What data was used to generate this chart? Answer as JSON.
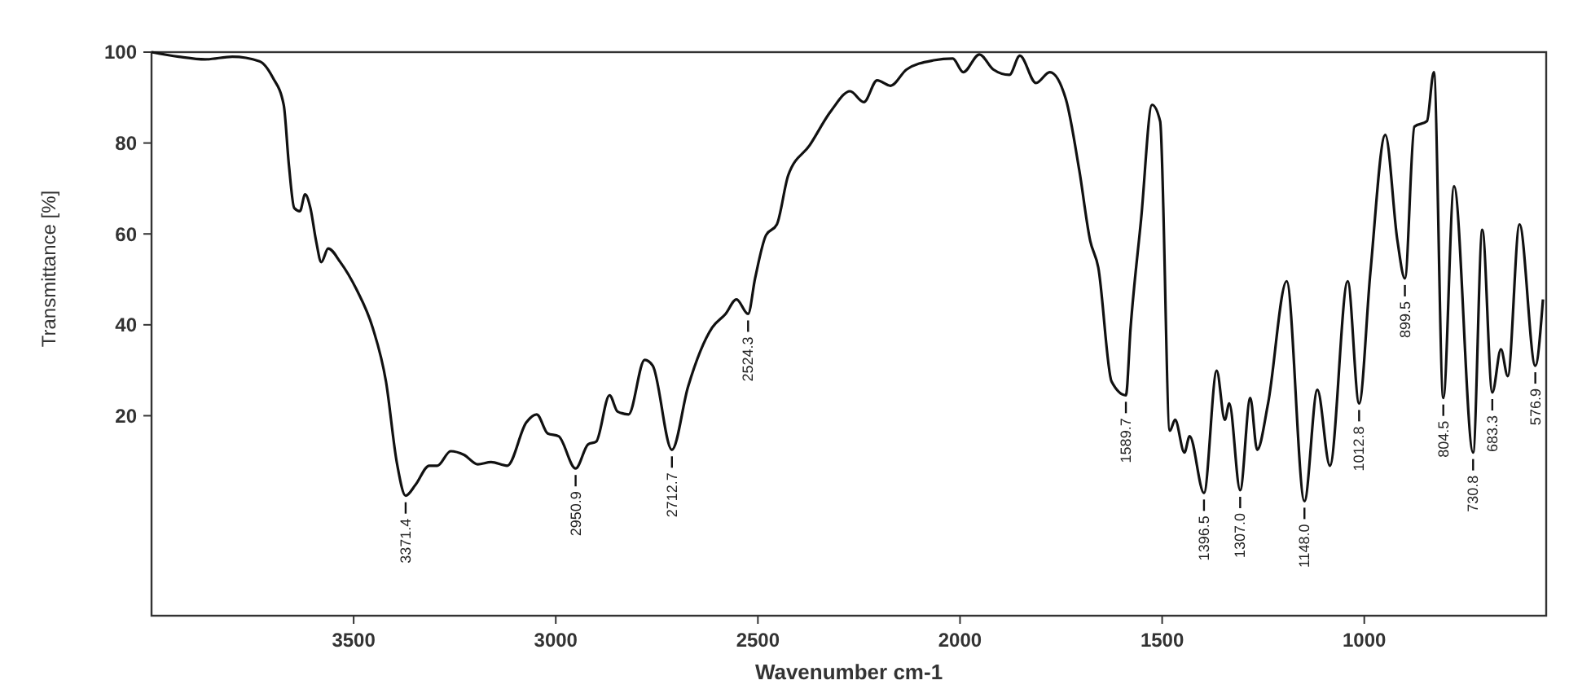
{
  "chart_data": {
    "type": "line",
    "xlabel": "Wavenumber cm-1",
    "ylabel": "Transmittance [%]",
    "xlim": [
      4000,
      550
    ],
    "ylim": [
      -24,
      100
    ],
    "xticks": [
      1000,
      1500,
      2000,
      2500,
      3000,
      3500
    ],
    "yticks": [
      20,
      40,
      60,
      80,
      100
    ],
    "grid": false,
    "series": [
      {
        "color": "#111111",
        "x": [
          4000,
          3933,
          3867,
          3800,
          3733,
          3700,
          3673,
          3660,
          3647,
          3633,
          3620,
          3607,
          3593,
          3580,
          3563,
          3533,
          3493,
          3453,
          3420,
          3393,
          3371.4,
          3347,
          3313,
          3293,
          3260,
          3227,
          3193,
          3160,
          3120,
          3073,
          3047,
          3020,
          2993,
          2950.9,
          2920,
          2900,
          2867,
          2847,
          2820,
          2780,
          2760,
          2712.7,
          2673,
          2613,
          2580,
          2553,
          2524.3,
          2507,
          2480,
          2453,
          2425,
          2372,
          2318,
          2272,
          2238,
          2205,
          2172,
          2132,
          2065,
          2018,
          1992,
          1952,
          1918,
          1878,
          1852,
          1812,
          1778,
          1738,
          1705,
          1678,
          1658,
          1625,
          1589.7,
          1578,
          1552,
          1525,
          1505,
          1481,
          1468,
          1445,
          1432,
          1396.5,
          1365,
          1345,
          1334,
          1307,
          1282,
          1265,
          1238,
          1192,
          1148,
          1116,
          1085,
          1041,
          1012.8,
          985,
          948,
          918,
          899.5,
          876,
          845,
          828,
          804.5,
          778,
          730.8,
          708,
          683.3,
          662,
          645,
          616,
          576.9,
          558
        ],
        "values": [
          100,
          99,
          98.4,
          99,
          98,
          94.4,
          88.4,
          75,
          65.7,
          65,
          68.7,
          65.7,
          58.5,
          53.8,
          56.8,
          53.8,
          47.8,
          39.4,
          27.5,
          9.6,
          2.4,
          4.8,
          9,
          9,
          12.2,
          11.4,
          9.3,
          9.8,
          9,
          18.5,
          20.3,
          16.1,
          15.5,
          8.4,
          13.7,
          14.3,
          24.5,
          20.9,
          20.3,
          32.3,
          31,
          12.5,
          26.3,
          39.4,
          42.4,
          45.6,
          42.4,
          50.2,
          59.7,
          62.1,
          72.9,
          79.5,
          87.2,
          91.4,
          89,
          93.8,
          92.6,
          96.2,
          98.2,
          98.6,
          95.6,
          99.5,
          96.2,
          95,
          99.2,
          93.2,
          95.6,
          89.6,
          74,
          58.5,
          52.6,
          27.5,
          24.5,
          39.4,
          63.3,
          88.4,
          84.8,
          16.7,
          19.1,
          11.9,
          15.5,
          3,
          29.9,
          19.1,
          22.7,
          3.6,
          23.9,
          12.5,
          22.7,
          49.6,
          1.2,
          25.7,
          9,
          49.6,
          22.7,
          51.4,
          81.8,
          58.5,
          50.2,
          83.6,
          84.8,
          95.6,
          23.9,
          70.5,
          11.9,
          60.9,
          25.1,
          34.6,
          28.7,
          62.1,
          31,
          45.6
        ]
      }
    ],
    "annotations": [
      {
        "text": "3371.4",
        "x": 3371.4,
        "y": 2.4
      },
      {
        "text": "2950.9",
        "x": 2950.9,
        "y": 8.4
      },
      {
        "text": "2712.7",
        "x": 2712.7,
        "y": 12.5
      },
      {
        "text": "2524.3",
        "x": 2524.3,
        "y": 42.4
      },
      {
        "text": "1589.7",
        "x": 1589.7,
        "y": 24.5
      },
      {
        "text": "1396.5",
        "x": 1396.5,
        "y": 3
      },
      {
        "text": "1307.0",
        "x": 1307,
        "y": 3.6
      },
      {
        "text": "1148.0",
        "x": 1148,
        "y": 1.2
      },
      {
        "text": "1012.8",
        "x": 1012.8,
        "y": 22.7
      },
      {
        "text": "899.5",
        "x": 899.5,
        "y": 50.2
      },
      {
        "text": "804.5",
        "x": 804.5,
        "y": 23.9
      },
      {
        "text": "730.8",
        "x": 730.8,
        "y": 11.9
      },
      {
        "text": "683.3",
        "x": 683.3,
        "y": 25.1
      },
      {
        "text": "576.9",
        "x": 576.9,
        "y": 31
      }
    ]
  }
}
